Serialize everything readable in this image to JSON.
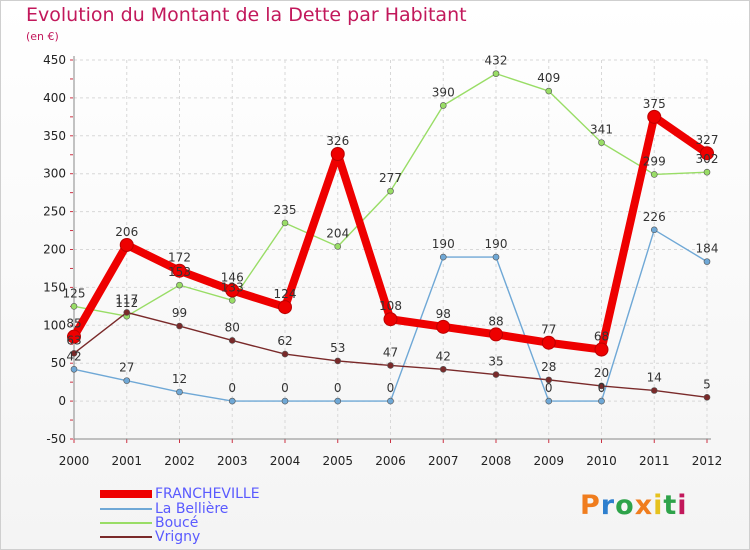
{
  "title": "Evolution du Montant de la Dette par Habitant",
  "unit_label": "(en €)",
  "brand": {
    "text": "Proxiti",
    "colors": [
      "#f07d1e",
      "#2e7fce",
      "#2ea34a",
      "#f07d1e",
      "#e6c21e",
      "#2ea34a",
      "#c2185b"
    ]
  },
  "chart_data": {
    "type": "line",
    "x": [
      "2000",
      "2001",
      "2002",
      "2003",
      "2004",
      "2005",
      "2006",
      "2007",
      "2008",
      "2009",
      "2010",
      "2011",
      "2012"
    ],
    "ylim": [
      -50,
      450
    ],
    "yticks": [
      -50,
      0,
      50,
      100,
      150,
      200,
      250,
      300,
      350,
      400,
      450
    ],
    "grid": true,
    "legend_position": "bottom-left",
    "series": [
      {
        "name": "FRANCHEVILLE",
        "color": "#ee0000",
        "thick": true,
        "values": [
          85,
          206,
          172,
          146,
          124,
          326,
          108,
          98,
          88,
          77,
          68,
          375,
          327
        ]
      },
      {
        "name": "La Bellière",
        "color": "#6fa8d6",
        "thick": false,
        "values": [
          42,
          27,
          12,
          0,
          0,
          0,
          0,
          190,
          190,
          0,
          0,
          226,
          184
        ]
      },
      {
        "name": "Boucé",
        "color": "#99dd66",
        "thick": false,
        "values": [
          125,
          112,
          153,
          133,
          235,
          204,
          277,
          390,
          432,
          409,
          341,
          299,
          302
        ]
      },
      {
        "name": "Vrigny",
        "color": "#7a2a2a",
        "thick": false,
        "values": [
          63,
          117,
          99,
          80,
          62,
          53,
          47,
          42,
          35,
          28,
          20,
          14,
          5
        ]
      }
    ],
    "data_labels": {
      "FRANCHEVILLE": [
        "85",
        "206",
        "172",
        "146",
        "124",
        "326",
        "108",
        "98",
        "88",
        "77",
        "68",
        "375",
        "327"
      ],
      "La Bellière": [
        "42",
        "27",
        "12",
        "0",
        "0",
        "0",
        "0",
        "190",
        "190",
        "0",
        "0",
        "226",
        "184"
      ],
      "Boucé": [
        "125",
        "112",
        "153",
        "133",
        "235",
        "204",
        "277",
        "390",
        "432",
        "409",
        "341",
        "299",
        "302"
      ],
      "Vrigny": [
        "63",
        "117",
        "99",
        "80",
        "62",
        "53",
        "47",
        "42",
        "35",
        "28",
        "20",
        "14",
        "5"
      ]
    }
  }
}
